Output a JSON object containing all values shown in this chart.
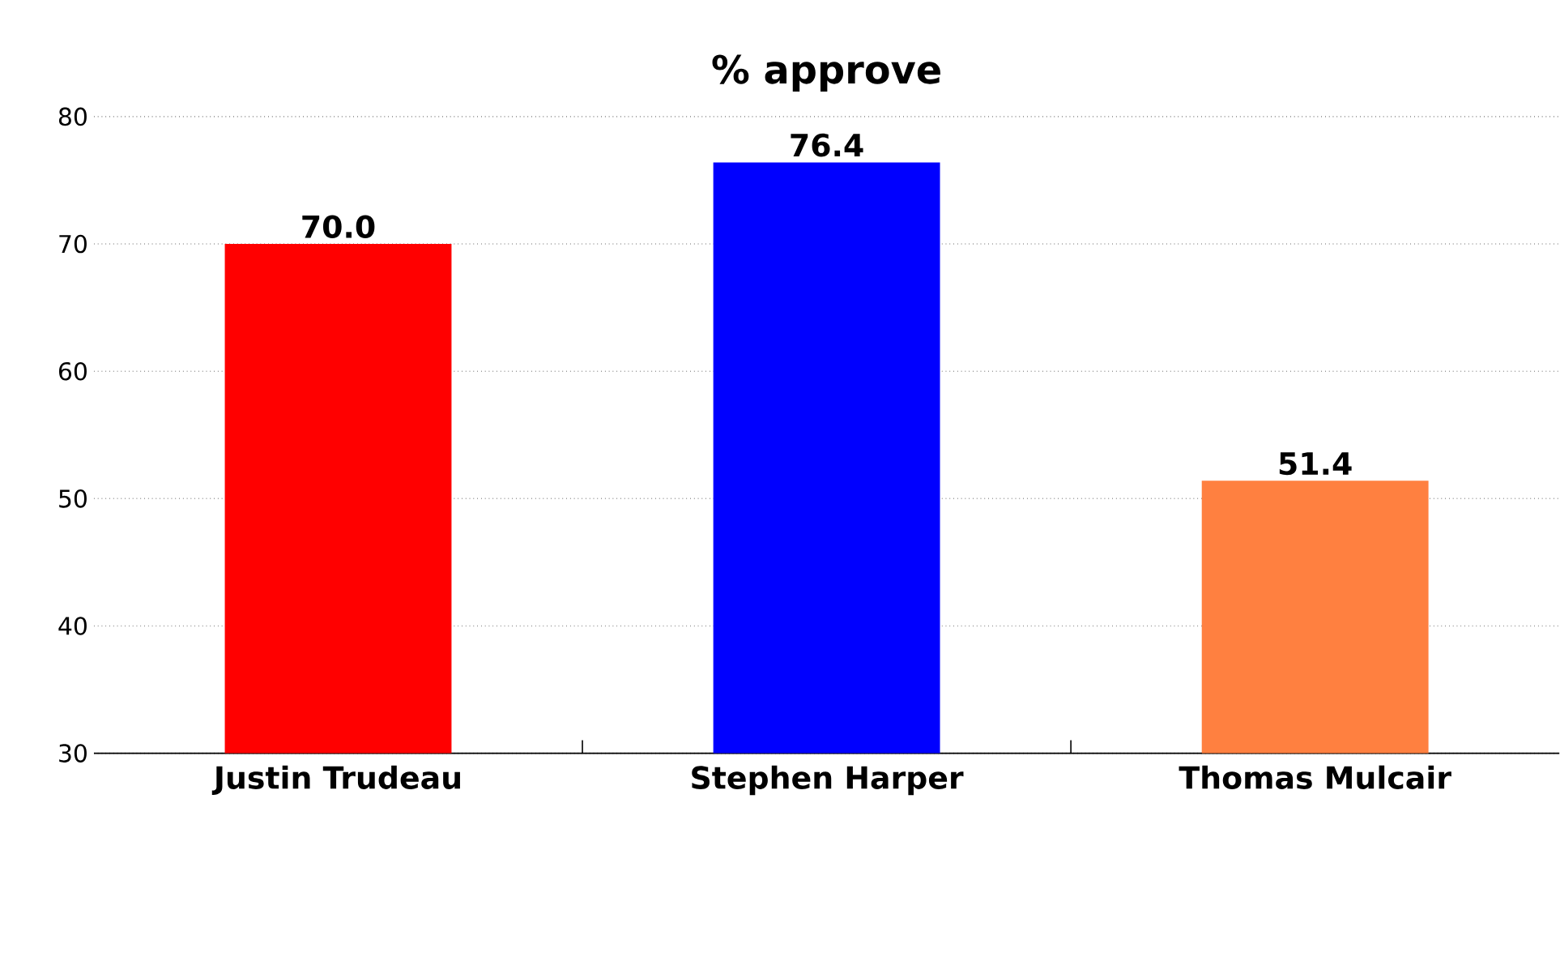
{
  "chart_data": {
    "type": "bar",
    "title": "% approve",
    "categories": [
      "Justin Trudeau",
      "Stephen Harper",
      "Thomas Mulcair"
    ],
    "values": [
      70.0,
      76.4,
      51.4
    ],
    "value_labels": [
      "70.0",
      "76.4",
      "51.4"
    ],
    "colors": [
      "#ff0000",
      "#0000ff",
      "#ff8040"
    ],
    "ylim": [
      30,
      80
    ],
    "yticks": [
      30,
      40,
      50,
      60,
      70,
      80
    ],
    "grid": "y"
  }
}
